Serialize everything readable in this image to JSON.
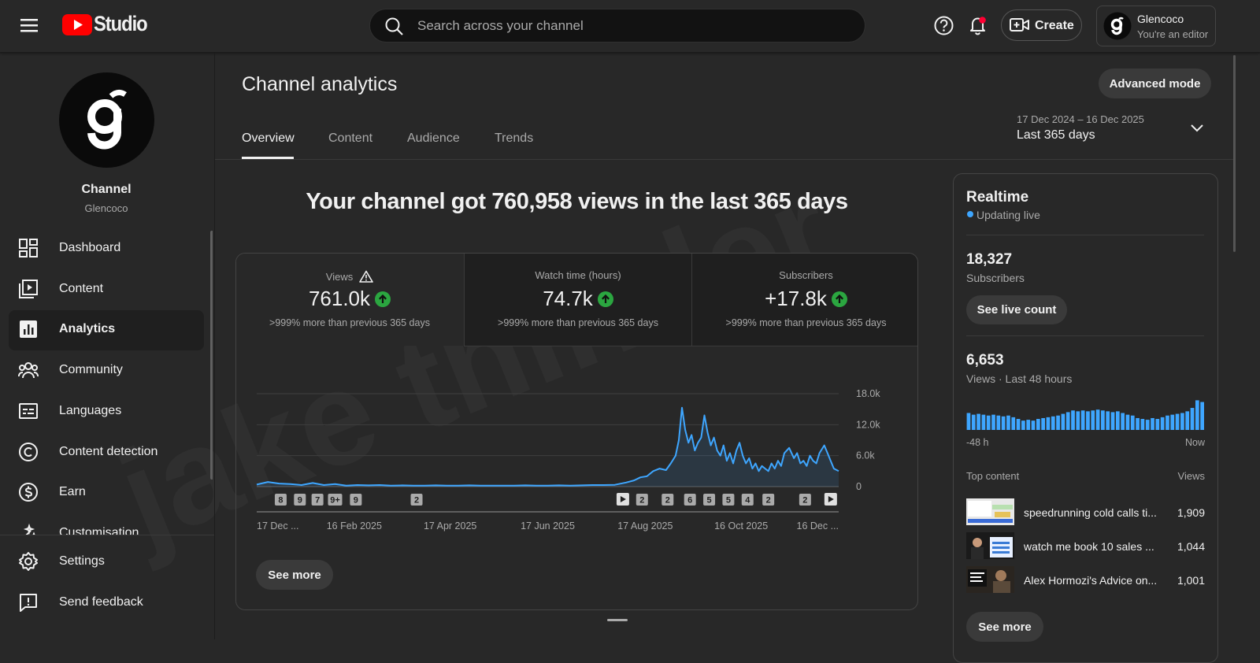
{
  "header": {
    "logo_text": "Studio",
    "search_placeholder": "Search across your channel",
    "create": "Create",
    "account_name": "Glencoco",
    "account_role": "You're an editor"
  },
  "sidebar": {
    "channel_title": "Channel",
    "channel_name": "Glencoco",
    "nav": [
      "Dashboard",
      "Content",
      "Analytics",
      "Community",
      "Languages",
      "Content detection",
      "Earn",
      "Customisation"
    ],
    "footer_nav": [
      "Settings",
      "Send feedback"
    ]
  },
  "main": {
    "title": "Channel analytics",
    "advanced_mode": "Advanced mode",
    "tabs": [
      "Overview",
      "Content",
      "Audience",
      "Trends"
    ],
    "date_range": "17 Dec 2024 – 16 Dec 2025",
    "period": "Last 365 days",
    "headline": "Your channel got 760,958 views in the last 365 days",
    "watermark": "jake thinder",
    "metrics": [
      {
        "label": "Views",
        "value": "761.0k",
        "note": ">999% more than previous 365 days"
      },
      {
        "label": "Watch time (hours)",
        "value": "74.7k",
        "note": ">999% more than previous 365 days"
      },
      {
        "label": "Subscribers",
        "value": "+17.8k",
        "note": ">999% more than previous 365 days"
      }
    ],
    "see_more": "See more"
  },
  "chart_data": {
    "type": "line",
    "color": "#3ea6ff",
    "xlim": [
      0,
      364
    ],
    "xticks": [
      {
        "value": 0,
        "label": "17 Dec ..."
      },
      {
        "value": 61,
        "label": "16 Feb 2025"
      },
      {
        "value": 121,
        "label": "17 Apr 2025"
      },
      {
        "value": 182,
        "label": "17 Jun 2025"
      },
      {
        "value": 243,
        "label": "17 Aug 2025"
      },
      {
        "value": 303,
        "label": "16 Oct 2025"
      },
      {
        "value": 364,
        "label": "16 Dec ..."
      }
    ],
    "ylim": [
      0,
      18000
    ],
    "yticks": [
      0,
      {
        "value": 6000,
        "label": "6.0k"
      },
      {
        "value": 12000,
        "label": "12.0k"
      },
      {
        "value": 18000,
        "label": "18.0k"
      }
    ],
    "grid": true,
    "x": [
      0,
      7,
      14,
      21,
      28,
      35,
      42,
      49,
      56,
      63,
      70,
      77,
      84,
      91,
      98,
      105,
      112,
      119,
      126,
      133,
      140,
      147,
      154,
      161,
      168,
      175,
      182,
      189,
      196,
      203,
      210,
      217,
      224,
      231,
      236,
      240,
      244,
      248,
      252,
      256,
      259,
      262,
      264,
      266,
      268,
      270,
      272,
      274,
      276,
      278,
      280,
      282,
      284,
      286,
      288,
      290,
      292,
      294,
      296,
      298,
      300,
      302,
      304,
      306,
      308,
      310,
      312,
      314,
      316,
      318,
      320,
      322,
      324,
      326,
      328,
      330,
      333,
      336,
      338,
      340,
      342,
      344,
      346,
      348,
      350,
      352,
      355,
      357,
      359,
      361,
      364
    ],
    "values": [
      400,
      900,
      600,
      500,
      300,
      700,
      300,
      500,
      200,
      300,
      250,
      300,
      200,
      250,
      200,
      200,
      250,
      200,
      200,
      250,
      200,
      200,
      200,
      200,
      250,
      200,
      200,
      250,
      200,
      250,
      300,
      300,
      350,
      800,
      1200,
      1800,
      2000,
      3000,
      3500,
      3200,
      4500,
      6000,
      9000,
      15300,
      11000,
      8500,
      10000,
      7000,
      8500,
      9500,
      13800,
      10500,
      8000,
      9500,
      7000,
      6000,
      8000,
      5000,
      6500,
      4500,
      7000,
      8500,
      6000,
      4500,
      5500,
      3500,
      4500,
      3000,
      4000,
      3500,
      3000,
      4500,
      3500,
      5000,
      4000,
      6500,
      7500,
      5500,
      6500,
      4500,
      5000,
      4000,
      6000,
      5000,
      4500,
      6500,
      8000,
      6500,
      5000,
      3500,
      3000
    ],
    "events": [
      {
        "x": 15,
        "label": "8"
      },
      {
        "x": 27,
        "label": "9"
      },
      {
        "x": 38,
        "label": "7"
      },
      {
        "x": 49,
        "label": "9+"
      },
      {
        "x": 62,
        "label": "9"
      },
      {
        "x": 100,
        "label": "2"
      },
      {
        "x": 241,
        "label": "2"
      },
      {
        "x": 257,
        "label": "2"
      },
      {
        "x": 271,
        "label": "6"
      },
      {
        "x": 283,
        "label": "5"
      },
      {
        "x": 295,
        "label": "5"
      },
      {
        "x": 307,
        "label": "4"
      },
      {
        "x": 320,
        "label": "2"
      },
      {
        "x": 343,
        "label": "2"
      }
    ],
    "video_events": [
      {
        "x": 229
      },
      {
        "x": 359
      }
    ]
  },
  "realtime": {
    "title": "Realtime",
    "status": "Updating live",
    "subscribers": "18,327",
    "subscribers_label": "Subscribers",
    "live_count": "See live count",
    "views": "6,653",
    "views_label": "Views · Last 48 hours",
    "bars": {
      "type": "bar",
      "color": "#3ea6ff",
      "ylim": [
        0,
        200
      ],
      "values": [
        100,
        90,
        95,
        90,
        85,
        90,
        85,
        80,
        85,
        75,
        65,
        55,
        60,
        55,
        65,
        70,
        75,
        80,
        85,
        95,
        105,
        115,
        110,
        115,
        110,
        115,
        120,
        115,
        110,
        105,
        110,
        100,
        90,
        85,
        70,
        65,
        60,
        70,
        65,
        75,
        85,
        90,
        95,
        100,
        110,
        130,
        175,
        165
      ]
    },
    "start_label": "-48 h",
    "end_label": "Now",
    "top_content": "Top content",
    "top_views": "Views",
    "items": [
      {
        "title": "speedrunning cold calls ti...",
        "views": "1,909"
      },
      {
        "title": "watch me book 10 sales ...",
        "views": "1,044"
      },
      {
        "title": "Alex Hormozi's Advice on...",
        "views": "1,001"
      }
    ],
    "see_more": "See more"
  }
}
